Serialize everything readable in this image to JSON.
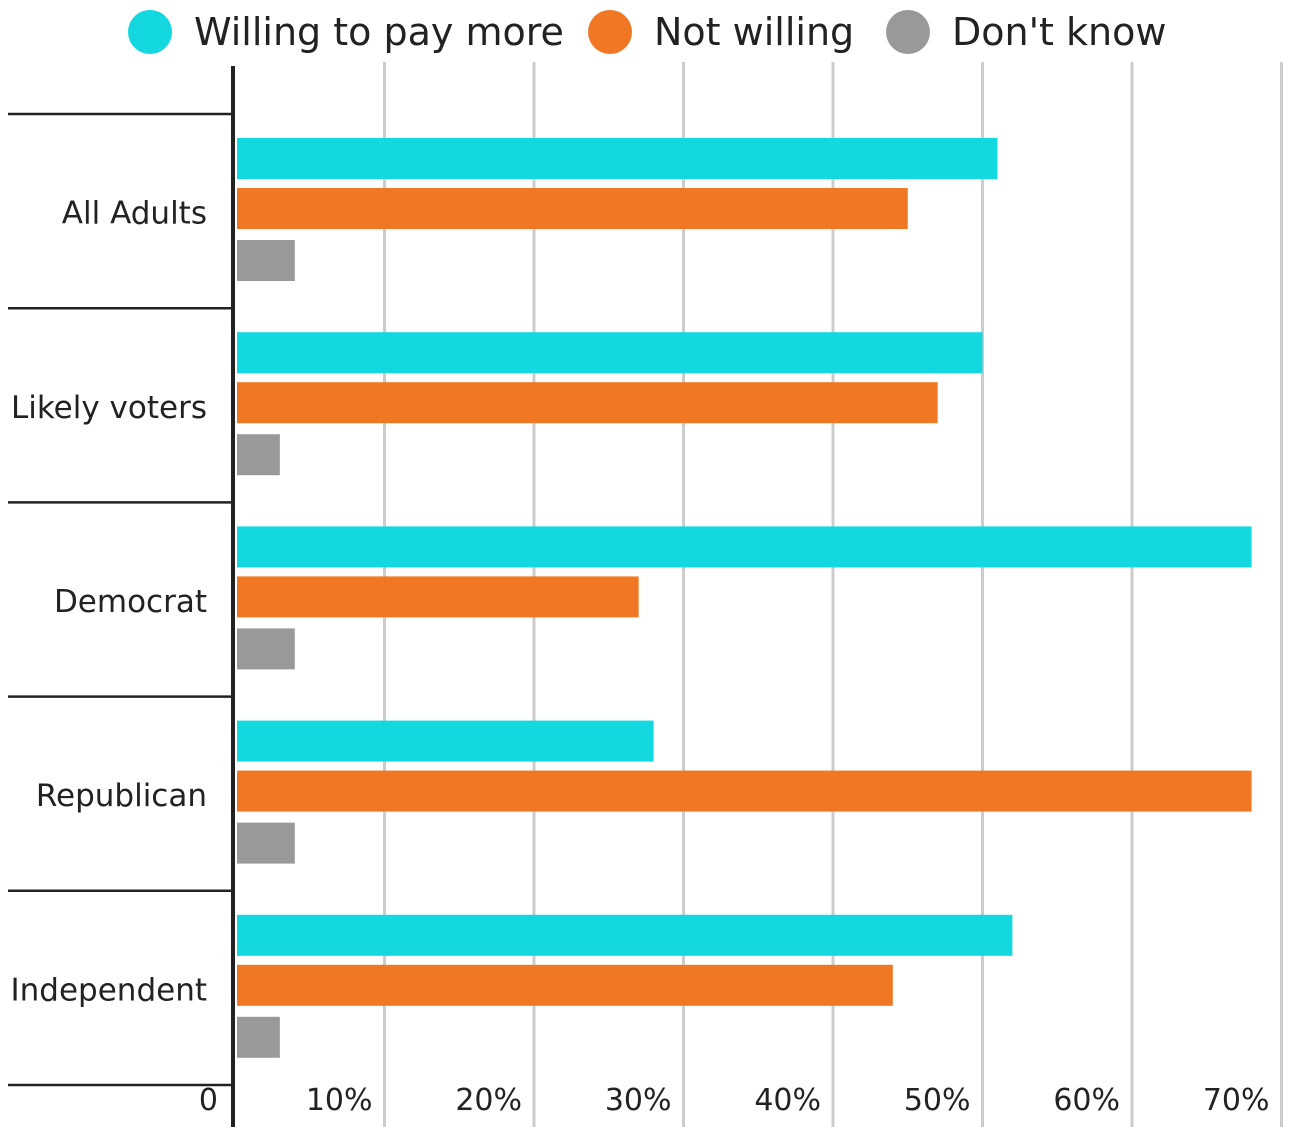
{
  "chart_data": {
    "type": "bar",
    "orientation": "horizontal",
    "categories": [
      "All Adults",
      "Likely voters",
      "Democrat",
      "Republican",
      "Independent"
    ],
    "series": [
      {
        "name": "Willing to pay more",
        "color": "#13D8E0",
        "values": [
          51,
          50,
          68,
          28,
          52
        ]
      },
      {
        "name": "Not willing",
        "color": "#F07723",
        "values": [
          45,
          47,
          27,
          68,
          44
        ]
      },
      {
        "name": "Don't know",
        "color": "#999999",
        "values": [
          4,
          3,
          4,
          4,
          3
        ]
      }
    ],
    "xlim": [
      0,
      70
    ],
    "x_ticks": [
      0,
      10,
      20,
      30,
      40,
      50,
      60,
      70
    ],
    "x_tick_labels": [
      "0",
      "10%",
      "20%",
      "30%",
      "40%",
      "50%",
      "60%",
      "70%"
    ],
    "grid": true,
    "legend_position": "top-center"
  }
}
